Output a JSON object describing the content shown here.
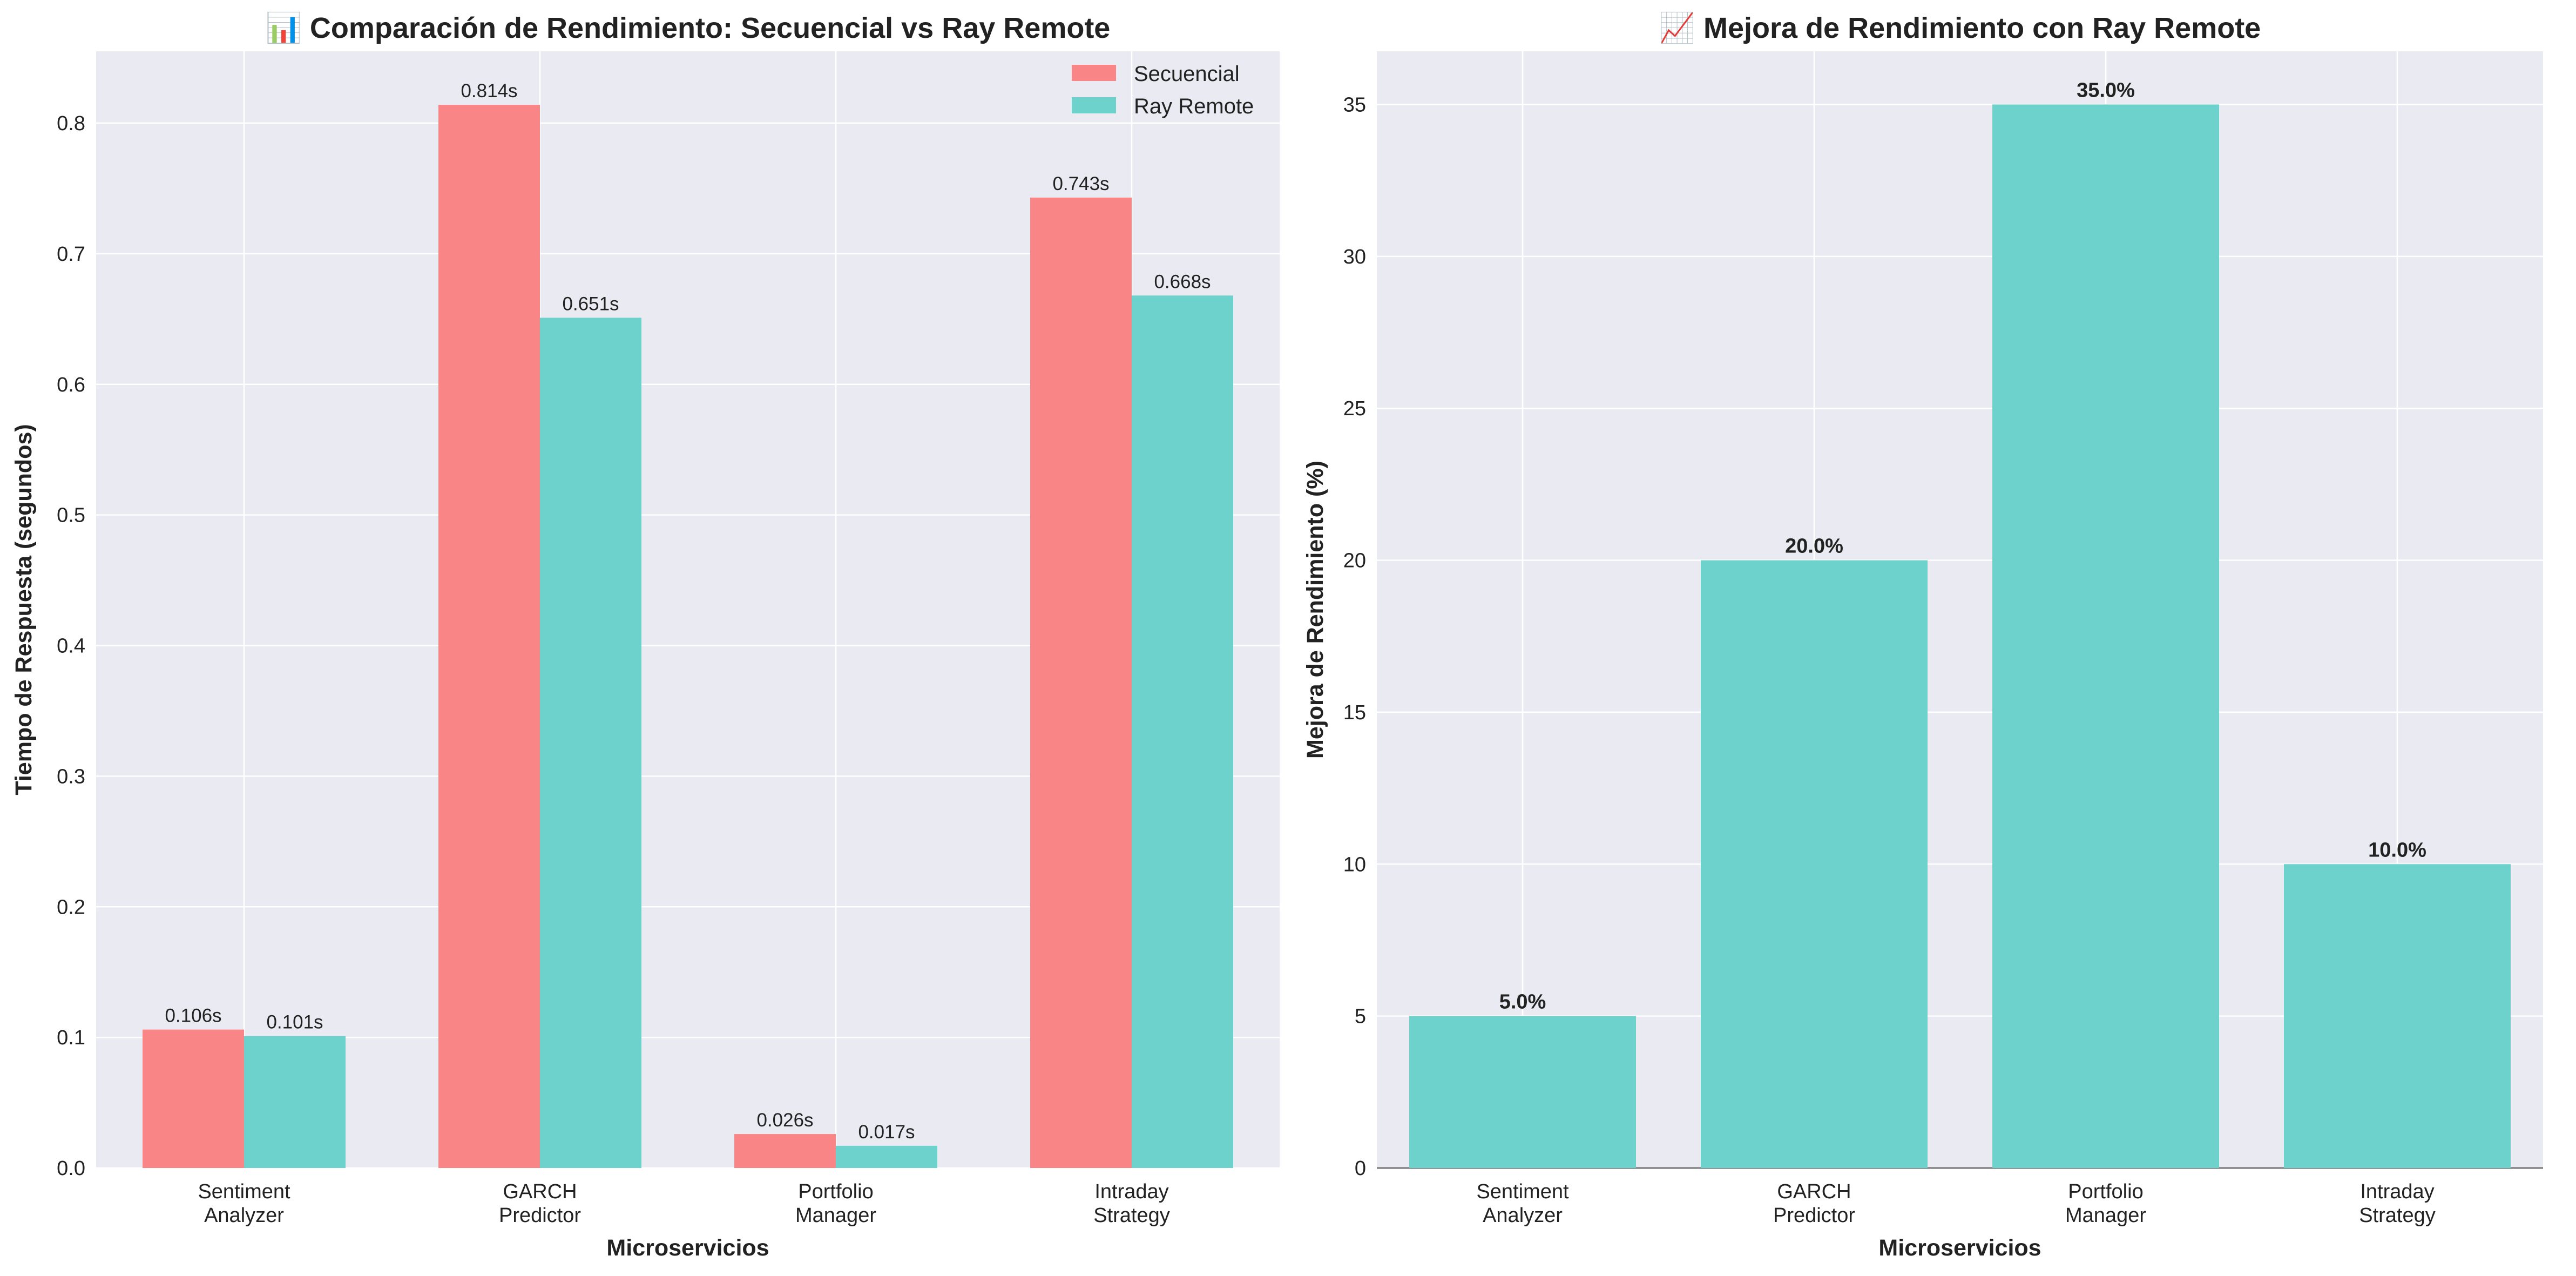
{
  "chart_data": [
    {
      "type": "bar",
      "title": "📊 Comparación de Rendimiento: Secuencial vs Ray Remote",
      "xlabel": "Microservicios",
      "ylabel": "Tiempo de Respuesta (segundos)",
      "categories": [
        [
          "Sentiment",
          "Analyzer"
        ],
        [
          "GARCH",
          "Predictor"
        ],
        [
          "Portfolio",
          "Manager"
        ],
        [
          "Intraday",
          "Strategy"
        ]
      ],
      "series": [
        {
          "name": "Secuencial",
          "color": "#fa8586",
          "values": [
            0.106,
            0.814,
            0.026,
            0.743
          ],
          "labels": [
            "0.106s",
            "0.814s",
            "0.026s",
            "0.743s"
          ]
        },
        {
          "name": "Ray Remote",
          "color": "#6dd1cc",
          "values": [
            0.101,
            0.651,
            0.017,
            0.668
          ],
          "labels": [
            "0.101s",
            "0.651s",
            "0.017s",
            "0.668s"
          ]
        }
      ],
      "ylim": [
        0,
        0.855
      ],
      "yticks": [
        "0.0",
        "0.1",
        "0.2",
        "0.3",
        "0.4",
        "0.5",
        "0.6",
        "0.7",
        "0.8"
      ],
      "grid": true,
      "legend": "top-right",
      "background": "#eaeaf2"
    },
    {
      "type": "bar",
      "title": "📈 Mejora de Rendimiento con Ray Remote",
      "xlabel": "Microservicios",
      "ylabel": "Mejora de Rendimiento (%)",
      "categories": [
        [
          "Sentiment",
          "Analyzer"
        ],
        [
          "GARCH",
          "Predictor"
        ],
        [
          "Portfolio",
          "Manager"
        ],
        [
          "Intraday",
          "Strategy"
        ]
      ],
      "series": [
        {
          "color": "#6dd1cc",
          "values": [
            5.0,
            20.0,
            35.0,
            10.0
          ],
          "labels": [
            "5.0%",
            "20.0%",
            "35.0%",
            "10.0%"
          ]
        }
      ],
      "ylim": [
        0,
        36.75
      ],
      "yticks": [
        "0",
        "5",
        "10",
        "15",
        "20",
        "25",
        "30",
        "35"
      ],
      "grid": true,
      "background": "#eaeaf2"
    }
  ]
}
